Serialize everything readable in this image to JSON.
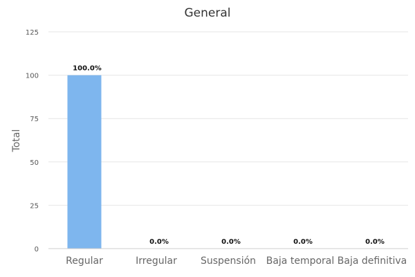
{
  "chart_data": {
    "type": "bar",
    "title": "General",
    "xlabel": "",
    "ylabel": "Total",
    "categories": [
      "Regular",
      "Irregular",
      "Suspensión",
      "Baja temporal",
      "Baja definitiva"
    ],
    "values": [
      100,
      0,
      0,
      0,
      0
    ],
    "data_labels": [
      "100.0%",
      "0.0%",
      "0.0%",
      "0.0%",
      "0.0%"
    ],
    "ylim": [
      0,
      125
    ],
    "yticks": [
      0,
      25,
      50,
      75,
      100,
      125
    ],
    "grid": true,
    "bar_color": "#7eb6ee"
  }
}
